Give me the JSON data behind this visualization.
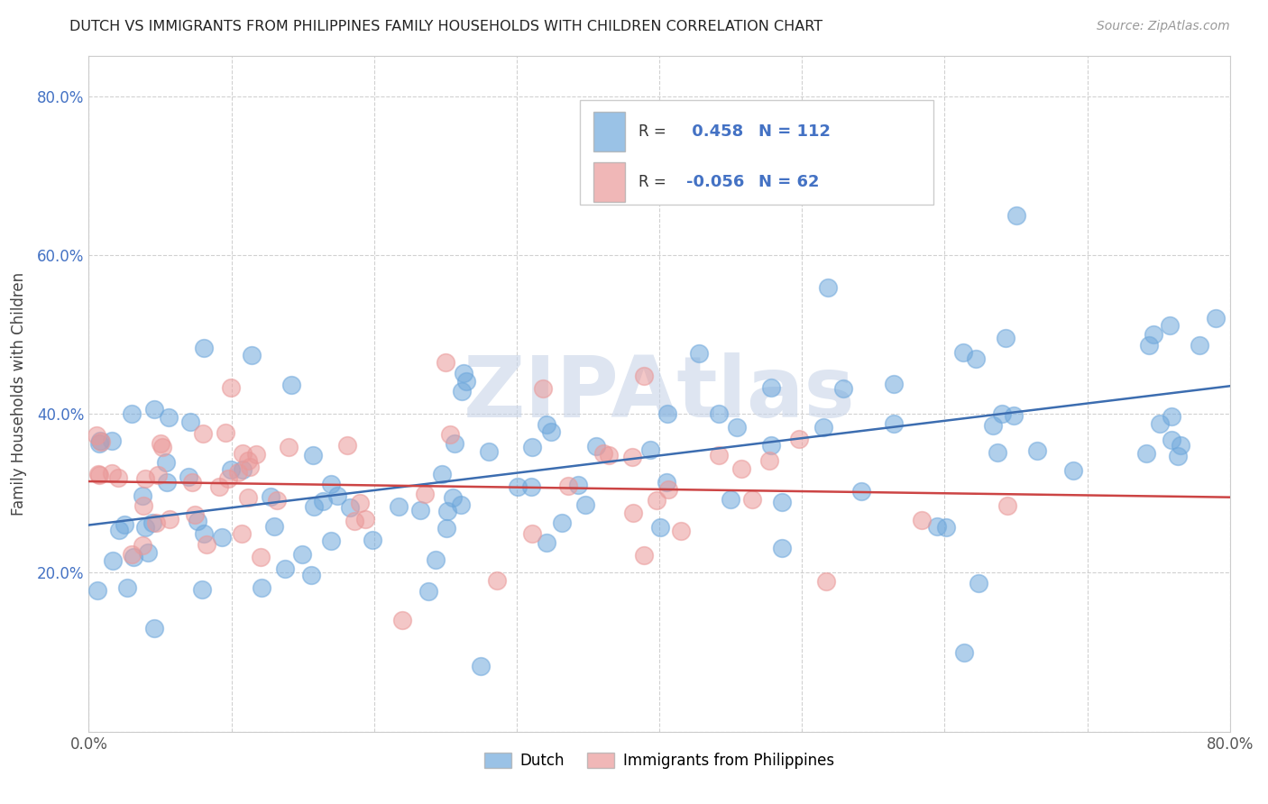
{
  "title": "DUTCH VS IMMIGRANTS FROM PHILIPPINES FAMILY HOUSEHOLDS WITH CHILDREN CORRELATION CHART",
  "source": "Source: ZipAtlas.com",
  "ylabel": "Family Households with Children",
  "xlim": [
    0.0,
    0.8
  ],
  "ylim": [
    0.0,
    0.85
  ],
  "xtick_positions": [
    0.0,
    0.1,
    0.2,
    0.3,
    0.4,
    0.5,
    0.6,
    0.7,
    0.8
  ],
  "ytick_positions": [
    0.0,
    0.2,
    0.4,
    0.6,
    0.8
  ],
  "xtick_labels": [
    "0.0%",
    "",
    "",
    "",
    "",
    "",
    "",
    "",
    "80.0%"
  ],
  "ytick_labels": [
    "",
    "20.0%",
    "40.0%",
    "60.0%",
    "80.0%"
  ],
  "r_dutch": 0.458,
  "n_dutch": 112,
  "r_phil": -0.056,
  "n_phil": 62,
  "dutch_color": "#6fa8dc",
  "phil_color": "#ea9999",
  "trend_dutch_color": "#3c6db0",
  "trend_phil_color": "#cc4444",
  "dutch_trend_start_y": 0.26,
  "dutch_trend_end_y": 0.435,
  "phil_trend_start_y": 0.315,
  "phil_trend_end_y": 0.295,
  "watermark": "ZIPAtlas",
  "watermark_color": "#c8d4e8",
  "legend_text_color": "#4472c4",
  "legend_label_color": "#333333"
}
